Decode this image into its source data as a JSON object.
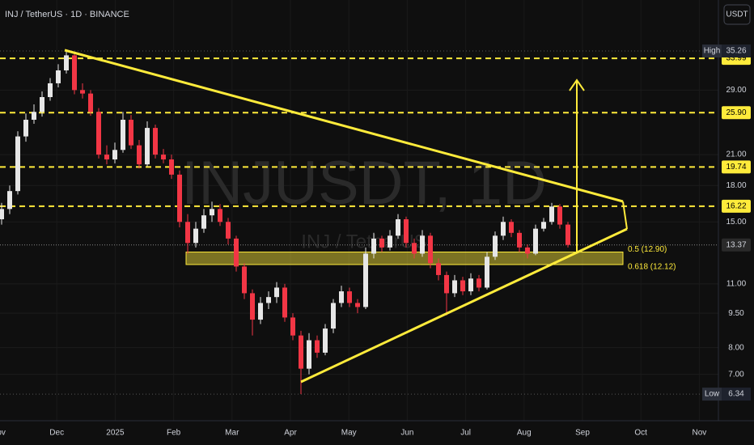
{
  "chart_data": {
    "type": "candlestick",
    "title": "INJ / TetherUS · 1D · BINANCE",
    "watermark": "INJUSDT, 1D",
    "watermark_sub": "INJ / TetherUS",
    "currency": "USDT",
    "log_scale": true,
    "grid": true,
    "up_color": "#e6e6e6",
    "down_color": "#f23645",
    "level_color": "#ffeb3b",
    "categories": [
      "Nov",
      "Dec",
      "2025",
      "Feb",
      "Mar",
      "Apr",
      "May",
      "Jun",
      "Jul",
      "Aug",
      "Sep",
      "Oct",
      "Nov"
    ],
    "ylim": [
      5.55,
      45.5
    ],
    "yticks": [
      {
        "value": 29,
        "label": "29.00"
      },
      {
        "value": 21,
        "label": "21.00"
      },
      {
        "value": 18,
        "label": "18.00"
      },
      {
        "value": 15,
        "label": "15.00"
      },
      {
        "value": 11,
        "label": "11.00"
      },
      {
        "value": 9.5,
        "label": "9.50"
      },
      {
        "value": 8,
        "label": "8.00"
      },
      {
        "value": 7,
        "label": "7.00"
      }
    ],
    "levels": [
      33.99,
      {
        "value": 25.9,
        "label": "25.90"
      },
      19.74,
      16.22
    ],
    "high": {
      "label": "High",
      "value": 35.26
    },
    "low": {
      "label": "Low",
      "value": 6.34
    },
    "last_price": 13.37,
    "fib_levels": [
      {
        "value": 12.9,
        "label": "0.5 (12.90)"
      },
      {
        "value": 12.12,
        "label": "0.618 (12.12)"
      }
    ],
    "candles": [
      [
        15.2,
        16.5,
        14.8,
        16
      ],
      [
        16,
        18,
        15.6,
        17.5
      ],
      [
        17.5,
        23.6,
        17.2,
        23
      ],
      [
        23,
        25.8,
        22.4,
        25
      ],
      [
        25,
        27,
        24.5,
        26
      ],
      [
        26,
        28.8,
        25.4,
        28
      ],
      [
        28,
        30.8,
        27.5,
        30
      ],
      [
        30,
        33,
        29.4,
        32
      ],
      [
        32,
        35.26,
        31.5,
        34.5
      ],
      [
        34.5,
        35,
        28.4,
        29
      ],
      [
        29,
        30,
        27.8,
        28.5
      ],
      [
        28.5,
        29,
        25.5,
        26
      ],
      [
        26,
        26.5,
        20.6,
        21
      ],
      [
        21,
        22,
        20,
        20.5
      ],
      [
        20.5,
        22.3,
        20.1,
        21.5
      ],
      [
        21.5,
        26,
        21.2,
        25
      ],
      [
        25,
        25.6,
        21.6,
        22
      ],
      [
        22,
        22.6,
        19.6,
        20
      ],
      [
        20,
        24.8,
        19.8,
        24
      ],
      [
        24,
        24.4,
        20.6,
        21
      ],
      [
        21,
        21.6,
        20.1,
        20.5
      ],
      [
        20.5,
        21,
        18.6,
        19
      ],
      [
        19,
        19.4,
        14.6,
        15
      ],
      [
        15,
        15.6,
        12.8,
        13.5
      ],
      [
        13.5,
        15,
        13.2,
        14.5
      ],
      [
        14.5,
        16,
        14.2,
        15.5
      ],
      [
        15.5,
        16.6,
        15,
        16
      ],
      [
        16,
        16.4,
        14.7,
        15
      ],
      [
        15,
        15.3,
        13.4,
        13.8
      ],
      [
        13.8,
        14,
        11.7,
        12
      ],
      [
        12,
        12.2,
        10.2,
        10.5
      ],
      [
        10.5,
        10.7,
        8.5,
        9.2
      ],
      [
        9.2,
        10.3,
        9,
        10
      ],
      [
        10,
        10.6,
        9.7,
        10.3
      ],
      [
        10.3,
        11.1,
        10,
        10.8
      ],
      [
        10.8,
        11,
        9.1,
        9.3
      ],
      [
        9.3,
        9.5,
        8.3,
        8.5
      ],
      [
        8.5,
        8.7,
        6.34,
        7.2
      ],
      [
        7.2,
        8.6,
        7,
        8.3
      ],
      [
        8.3,
        8.5,
        7.6,
        7.8
      ],
      [
        7.8,
        9,
        7.7,
        8.8
      ],
      [
        8.8,
        10.2,
        8.6,
        10
      ],
      [
        10,
        10.9,
        9.8,
        10.6
      ],
      [
        10.6,
        10.8,
        9.8,
        10
      ],
      [
        10,
        10.2,
        9.5,
        9.8
      ],
      [
        9.8,
        13.2,
        9.7,
        12.8
      ],
      [
        12.8,
        14.2,
        12.5,
        13.8
      ],
      [
        13.8,
        14,
        12.9,
        13.2
      ],
      [
        13.2,
        14.4,
        13,
        14
      ],
      [
        14,
        15.6,
        13.8,
        15.2
      ],
      [
        15.2,
        15.4,
        13.2,
        13.5
      ],
      [
        13.5,
        13.8,
        12.5,
        12.8
      ],
      [
        12.8,
        14.4,
        12.6,
        14
      ],
      [
        14,
        14.2,
        11.9,
        12.2
      ],
      [
        12.2,
        12.5,
        11.2,
        11.5
      ],
      [
        11.5,
        11.7,
        9.4,
        10.5
      ],
      [
        10.5,
        11.5,
        10.3,
        11.2
      ],
      [
        11.2,
        11.4,
        10.4,
        10.6
      ],
      [
        10.6,
        11.6,
        10.4,
        11.3
      ],
      [
        11.3,
        11.5,
        10.6,
        10.8
      ],
      [
        10.8,
        12.9,
        10.7,
        12.6
      ],
      [
        12.6,
        14.3,
        12.4,
        14
      ],
      [
        14,
        15.4,
        13.7,
        15
      ],
      [
        15,
        15.2,
        13.9,
        14.2
      ],
      [
        14.2,
        14.4,
        12.9,
        13.2
      ],
      [
        13.2,
        13.4,
        12.5,
        12.8
      ],
      [
        12.8,
        14.8,
        12.7,
        14.5
      ],
      [
        14.5,
        15.3,
        14.3,
        15
      ],
      [
        15,
        16.5,
        14.8,
        16.2
      ],
      [
        16.2,
        16.4,
        14.5,
        14.8
      ],
      [
        14.8,
        15,
        13.2,
        13.37
      ]
    ]
  }
}
